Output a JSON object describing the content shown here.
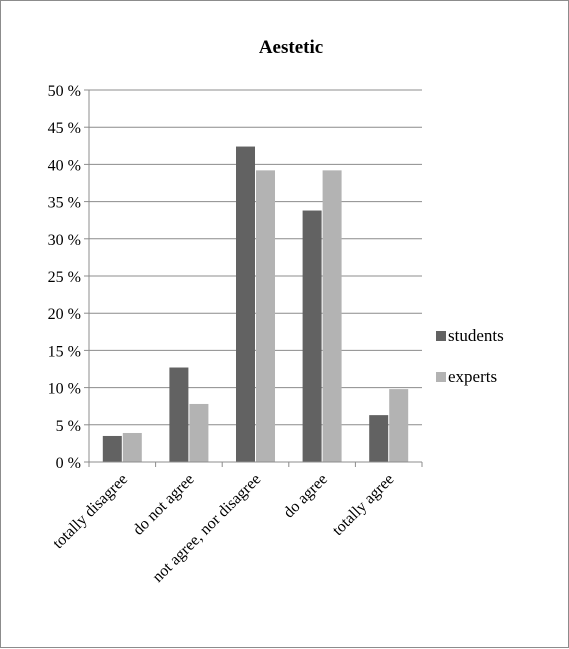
{
  "chart_data": {
    "type": "bar",
    "title": "Aestetic",
    "categories": [
      "totally disagree",
      "do not agree",
      "not agree, nor disagree",
      "do agree",
      "totally agree"
    ],
    "series": [
      {
        "name": "students",
        "color": "#626262",
        "values": [
          3.5,
          12.7,
          42.4,
          33.8,
          6.3
        ]
      },
      {
        "name": "experts",
        "color": "#b3b3b3",
        "values": [
          3.9,
          7.8,
          39.2,
          39.2,
          9.8
        ]
      }
    ],
    "y_ticks": [
      "0 %",
      "5 %",
      "10 %",
      "15 %",
      "20 %",
      "25 %",
      "30 %",
      "35 %",
      "40 %",
      "45 %",
      "50 %"
    ],
    "ylim": [
      0,
      50
    ],
    "y_step": 5,
    "grid": true,
    "legend_position": "right"
  }
}
